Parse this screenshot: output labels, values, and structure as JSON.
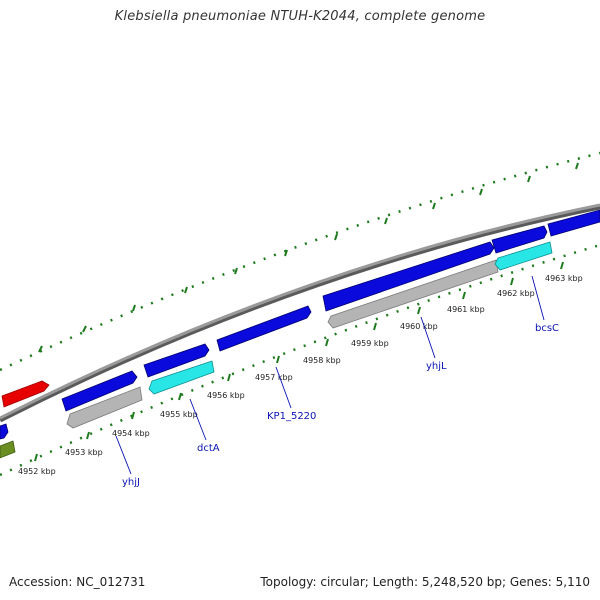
{
  "title": "Klebsiella pneumoniae NTUH-K2044, complete genome",
  "footer": {
    "accession": "Accession: NC_012731",
    "stats": "Topology: circular; Length: 5,248,520 bp; Genes: 5,110"
  },
  "colors": {
    "background": "#ffffff",
    "backbone": "#8c8c8c",
    "ticks": "#1e7a1e",
    "cds_blue": "#0a0adc",
    "cds_gray": "#b4b4b4",
    "cds_cyan": "#28e6e6",
    "cds_red": "#e60000",
    "cds_olive": "#6b8e23",
    "gene_label": "#0a14b4"
  },
  "scale_labels": [
    "4952 kbp",
    "4953 kbp",
    "4954 kbp",
    "4955 kbp",
    "4956 kbp",
    "4957 kbp",
    "4958 kbp",
    "4959 kbp",
    "4960 kbp",
    "4961 kbp",
    "4962 kbp",
    "4963 kbp"
  ],
  "gene_labels": [
    "yhjJ",
    "dctA",
    "KP1_5220",
    "yhjL",
    "bcsC"
  ]
}
